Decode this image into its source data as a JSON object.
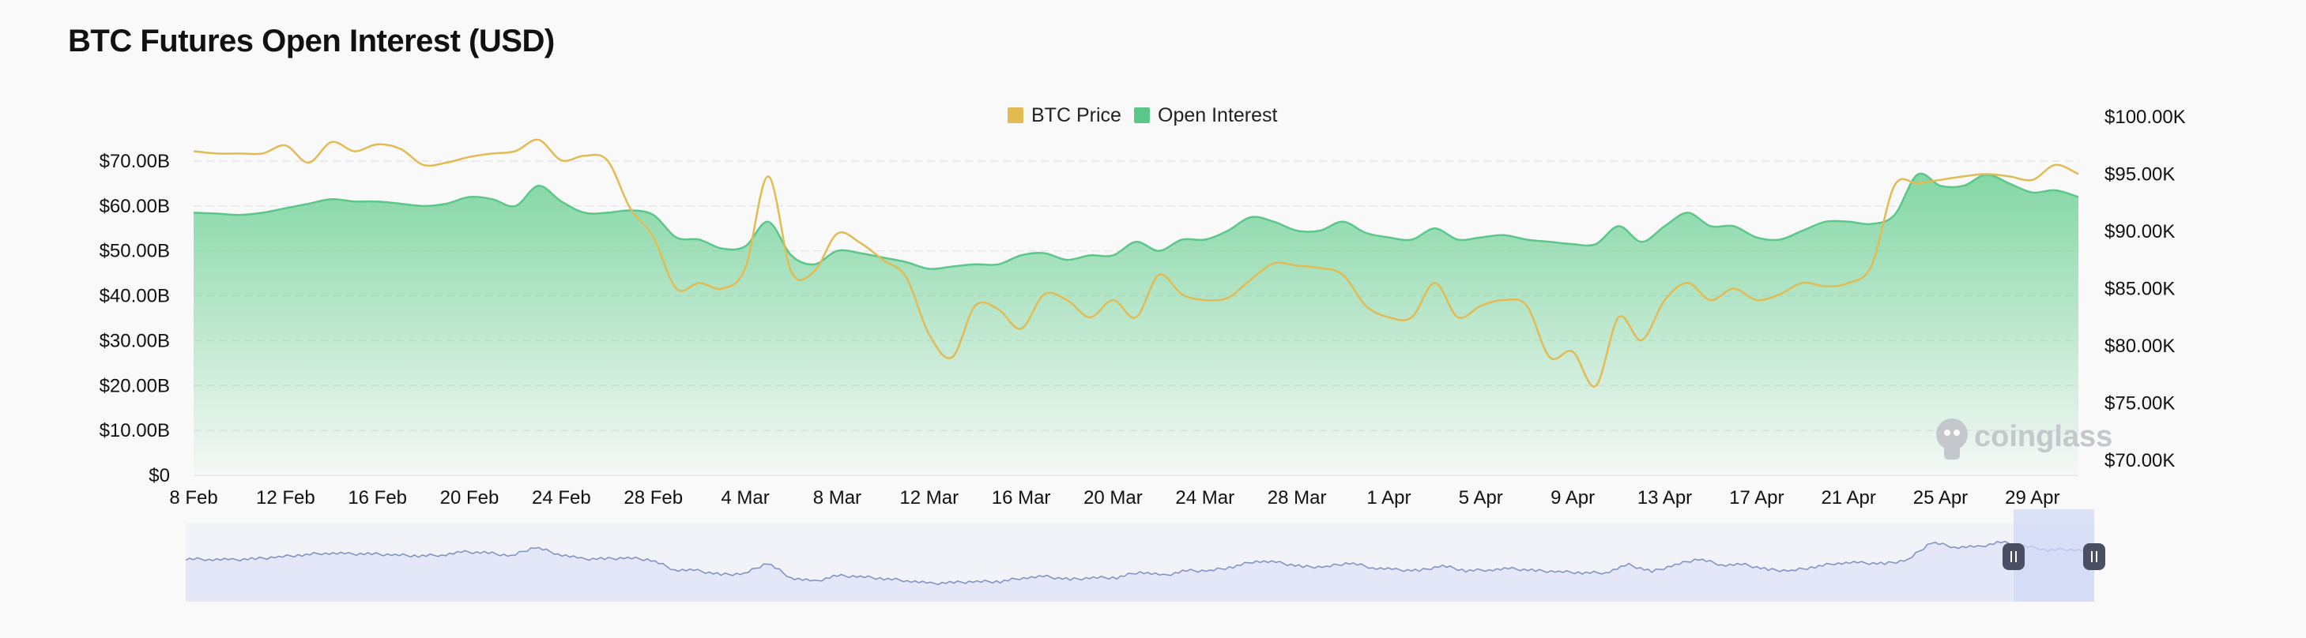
{
  "page": {
    "title": "BTC Futures Open Interest (USD)"
  },
  "watermark": {
    "text": "coinglass",
    "icon": "coinglass-logo-icon"
  },
  "colors": {
    "btc_price": "#e2bb55",
    "open_interest": "#5bc78a",
    "oi_fill_top": "#6fd196",
    "navigator_fill": "#e3e7f7",
    "navigator_line": "#7d8fc4",
    "navigator_selection": "#d0d8f5",
    "grid": "#e6e6e6"
  },
  "chart_data": {
    "type": "area",
    "title": "BTC Futures Open Interest (USD)",
    "legend": {
      "position": "top-center",
      "entries": [
        "BTC Price",
        "Open Interest"
      ]
    },
    "grid": true,
    "x_ticks": [
      "8 Feb",
      "12 Feb",
      "16 Feb",
      "20 Feb",
      "24 Feb",
      "28 Feb",
      "4 Mar",
      "8 Mar",
      "12 Mar",
      "16 Mar",
      "20 Mar",
      "24 Mar",
      "28 Mar",
      "1 Apr",
      "5 Apr",
      "9 Apr",
      "13 Apr",
      "17 Apr",
      "21 Apr",
      "25 Apr",
      "29 Apr"
    ],
    "x_range": [
      "8 Feb",
      "30 Apr"
    ],
    "y_left": {
      "unit": "USD",
      "ticks": [
        "$0",
        "$10.00B",
        "$20.00B",
        "$30.00B",
        "$40.00B",
        "$50.00B",
        "$60.00B",
        "$70.00B"
      ],
      "range": [
        0,
        70
      ]
    },
    "y_right": {
      "unit": "USD",
      "ticks": [
        "$70.00K",
        "$75.00K",
        "$80.00K",
        "$85.00K",
        "$90.00K",
        "$95.00K",
        "$100.00K"
      ],
      "range": [
        70,
        100
      ]
    },
    "series": [
      {
        "name": "Open Interest",
        "axis": "left",
        "style": "area",
        "x": [
          0,
          1,
          2,
          3,
          4,
          5,
          6,
          7,
          8,
          9,
          10,
          11,
          12,
          13,
          14,
          15,
          16,
          17,
          18,
          19,
          20,
          21,
          22,
          23,
          24,
          25,
          26,
          27,
          28,
          29,
          30,
          31,
          32,
          33,
          34,
          35,
          36,
          37,
          38,
          39,
          40,
          41,
          42,
          43,
          44,
          45,
          46,
          47,
          48,
          49,
          50,
          51,
          52,
          53,
          54,
          55,
          56,
          57,
          58,
          59,
          60,
          61,
          62,
          63,
          64,
          65,
          66,
          67,
          68,
          69,
          70,
          71,
          72,
          73,
          74,
          75,
          76,
          77,
          78,
          79,
          80,
          81,
          82
        ],
        "values": [
          58.5,
          58.3,
          58.0,
          58.5,
          59.5,
          60.5,
          61.5,
          61.0,
          61.0,
          60.5,
          60.0,
          60.5,
          62.0,
          61.5,
          60.0,
          64.5,
          61.0,
          58.5,
          58.5,
          59.0,
          58.0,
          53.0,
          52.5,
          50.5,
          51.0,
          56.5,
          49.0,
          47.0,
          50.0,
          49.5,
          48.5,
          47.5,
          46.0,
          46.5,
          47.0,
          47.0,
          49.0,
          49.5,
          48.0,
          49.0,
          49.0,
          52.0,
          50.0,
          52.5,
          52.5,
          54.5,
          57.5,
          56.5,
          54.5,
          54.5,
          56.5,
          54.0,
          53.0,
          52.5,
          55.0,
          52.5,
          53.0,
          53.5,
          52.5,
          52.0,
          51.5,
          51.5,
          55.5,
          52.0,
          55.5,
          58.5,
          55.5,
          55.5,
          53.0,
          52.5,
          54.5,
          56.5,
          56.5,
          56.0,
          58.0,
          67.0,
          64.5,
          64.5,
          67.0,
          65.0,
          63.0,
          63.5,
          62.0
        ]
      },
      {
        "name": "BTC Price",
        "axis": "right",
        "style": "line",
        "x": [
          0,
          1,
          2,
          3,
          4,
          5,
          6,
          7,
          8,
          9,
          10,
          11,
          12,
          13,
          14,
          15,
          16,
          17,
          18,
          19,
          20,
          21,
          22,
          23,
          24,
          25,
          26,
          27,
          28,
          29,
          30,
          31,
          32,
          33,
          34,
          35,
          36,
          37,
          38,
          39,
          40,
          41,
          42,
          43,
          44,
          45,
          46,
          47,
          48,
          49,
          50,
          51,
          52,
          53,
          54,
          55,
          56,
          57,
          58,
          59,
          60,
          61,
          62,
          63,
          64,
          65,
          66,
          67,
          68,
          69,
          70,
          71,
          72,
          73,
          74,
          75,
          76,
          77,
          78,
          79,
          80,
          81,
          82
        ],
        "values": [
          97.0,
          96.8,
          96.8,
          96.8,
          97.5,
          96.0,
          97.8,
          97.0,
          97.6,
          97.2,
          95.8,
          96.0,
          96.5,
          96.8,
          97.0,
          98.0,
          96.2,
          96.6,
          96.2,
          92.0,
          89.5,
          85.0,
          85.5,
          85.0,
          86.8,
          94.8,
          86.5,
          86.5,
          89.8,
          89.0,
          87.5,
          86.0,
          81.0,
          79.0,
          83.5,
          83.2,
          81.5,
          84.5,
          84.0,
          82.5,
          84.0,
          82.5,
          86.2,
          84.5,
          84.0,
          84.2,
          85.8,
          87.2,
          87.0,
          86.8,
          86.2,
          83.5,
          82.5,
          82.5,
          85.5,
          82.5,
          83.5,
          84.0,
          83.5,
          79.0,
          79.5,
          76.5,
          82.5,
          80.5,
          84.0,
          85.5,
          84.0,
          85.0,
          84.0,
          84.5,
          85.5,
          85.2,
          85.5,
          87.0,
          94.0,
          94.2,
          94.5,
          94.8,
          95.0,
          94.8,
          94.5,
          95.8,
          95.0
        ]
      }
    ],
    "navigator": {
      "present": true,
      "selection": [
        "27 Apr",
        "30 Apr"
      ],
      "values": [
        58.5,
        58.3,
        58.0,
        58.5,
        59.5,
        60.5,
        61.5,
        61.0,
        61.0,
        60.5,
        60.0,
        60.5,
        62.0,
        61.5,
        60.0,
        64.5,
        61.0,
        58.5,
        58.5,
        59.0,
        58.0,
        53.0,
        52.5,
        50.5,
        51.0,
        56.5,
        49.0,
        47.0,
        50.0,
        49.5,
        48.5,
        47.5,
        46.0,
        46.5,
        47.0,
        47.0,
        49.0,
        49.5,
        48.0,
        49.0,
        49.0,
        52.0,
        50.0,
        52.5,
        52.5,
        54.5,
        57.5,
        56.5,
        54.5,
        54.5,
        56.5,
        54.0,
        53.0,
        52.5,
        55.0,
        52.5,
        53.0,
        53.5,
        52.5,
        52.0,
        51.5,
        51.5,
        55.5,
        52.0,
        55.5,
        58.5,
        55.5,
        55.5,
        53.0,
        52.5,
        54.5,
        56.5,
        56.5,
        56.0,
        58.0,
        67.0,
        64.5,
        64.5,
        67.0,
        65.0,
        63.0,
        63.5,
        62.0
      ]
    }
  }
}
